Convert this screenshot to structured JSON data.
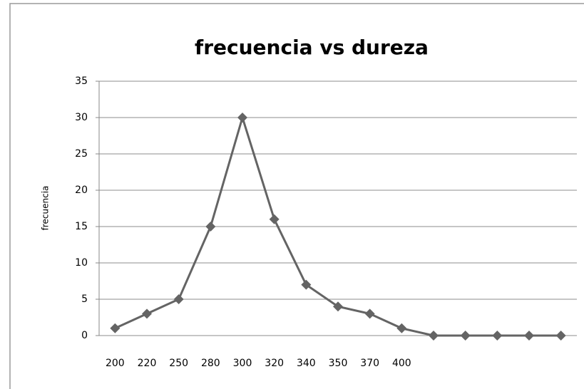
{
  "chart_data": {
    "type": "line",
    "title": "frecuencia vs dureza",
    "y_label": "frecuencia",
    "categories": [
      "200",
      "220",
      "250",
      "280",
      "300",
      "320",
      "340",
      "350",
      "370",
      "400",
      null,
      null,
      null,
      null,
      null
    ],
    "values": [
      1,
      3,
      5,
      15,
      30,
      16,
      7,
      4,
      3,
      1,
      0,
      0,
      0,
      0,
      0
    ],
    "color": "#646464",
    "ylim": [
      0,
      35
    ],
    "yticks": [
      0,
      5,
      10,
      15,
      20,
      25,
      30,
      35
    ],
    "grid": true
  }
}
